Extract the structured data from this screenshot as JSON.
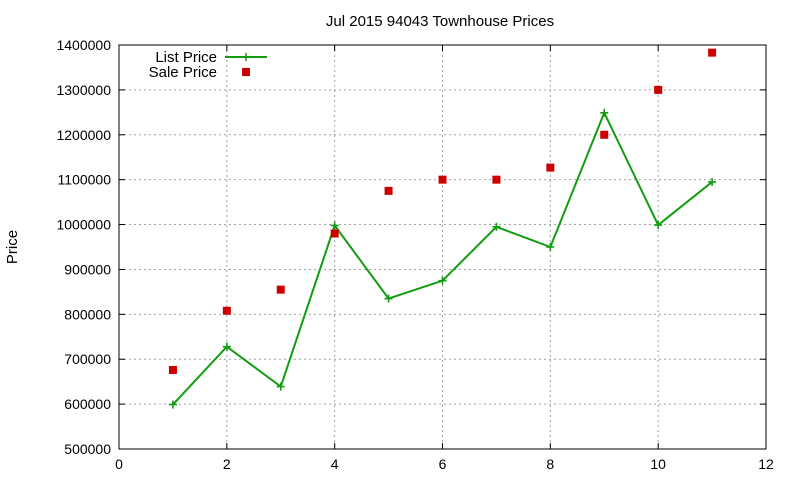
{
  "chart_data": {
    "type": "line",
    "title": "Jul 2015 94043 Townhouse Prices",
    "xlabel": "",
    "ylabel": "Price",
    "xlim": [
      0,
      12
    ],
    "ylim": [
      500000,
      1400000
    ],
    "xticks": [
      0,
      2,
      4,
      6,
      8,
      10,
      12
    ],
    "yticks": [
      500000,
      600000,
      700000,
      800000,
      900000,
      1000000,
      1100000,
      1200000,
      1300000,
      1400000
    ],
    "grid": true,
    "legend_position": "top-left",
    "series": [
      {
        "name": "List Price",
        "style": "line+plus",
        "color": "#109e10",
        "x": [
          1,
          2,
          3,
          4,
          5,
          6,
          7,
          8,
          9,
          10,
          11
        ],
        "y": [
          599000,
          728000,
          639000,
          998000,
          835000,
          875000,
          995000,
          950000,
          1249000,
          999000,
          1095000
        ]
      },
      {
        "name": "Sale Price",
        "style": "square-points",
        "color": "#cc0000",
        "x": [
          1,
          2,
          3,
          4,
          5,
          6,
          7,
          8,
          9,
          10,
          11
        ],
        "y": [
          676000,
          808000,
          855000,
          980000,
          1075000,
          1100000,
          1100000,
          1127000,
          1200000,
          1300000,
          1383000
        ]
      }
    ]
  }
}
